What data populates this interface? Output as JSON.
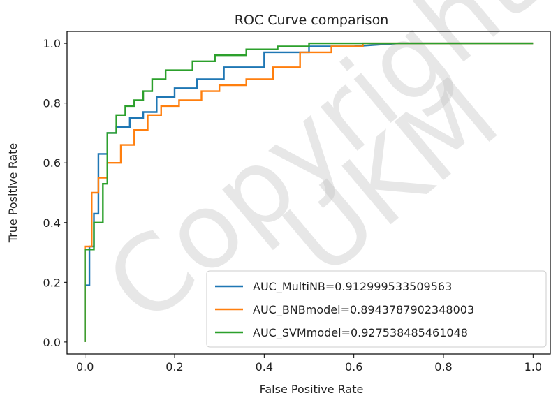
{
  "chart_data": {
    "type": "line",
    "title": "ROC Curve comparison",
    "xlabel": "False Positive Rate",
    "ylabel": "True Positive Rate",
    "xlim": [
      -0.04,
      1.04
    ],
    "ylim": [
      -0.04,
      1.04
    ],
    "xticks": [
      0.0,
      0.2,
      0.4,
      0.6,
      0.8,
      1.0
    ],
    "yticks": [
      0.0,
      0.2,
      0.4,
      0.6,
      0.8,
      1.0
    ],
    "xtick_labels": [
      "0.0",
      "0.2",
      "0.4",
      "0.6",
      "0.8",
      "1.0"
    ],
    "ytick_labels": [
      "0.0",
      "0.2",
      "0.4",
      "0.6",
      "0.8",
      "1.0"
    ],
    "grid": false,
    "legend_position": "lower-right",
    "series": [
      {
        "name": "AUC_MultiNB=0.912999533509563",
        "color": "#1f77b4",
        "x": [
          0.0,
          0.0,
          0.01,
          0.01,
          0.02,
          0.02,
          0.03,
          0.03,
          0.05,
          0.05,
          0.07,
          0.07,
          0.1,
          0.1,
          0.13,
          0.13,
          0.16,
          0.16,
          0.2,
          0.2,
          0.25,
          0.25,
          0.31,
          0.31,
          0.4,
          0.4,
          0.5,
          0.5,
          0.6,
          0.7,
          1.0
        ],
        "y": [
          0.0,
          0.19,
          0.19,
          0.32,
          0.32,
          0.43,
          0.43,
          0.63,
          0.63,
          0.7,
          0.7,
          0.72,
          0.72,
          0.75,
          0.75,
          0.77,
          0.77,
          0.82,
          0.82,
          0.85,
          0.85,
          0.88,
          0.88,
          0.92,
          0.92,
          0.97,
          0.97,
          0.99,
          0.99,
          1.0,
          1.0
        ]
      },
      {
        "name": "AUC_BNBmodel=0.8943787902348003",
        "color": "#ff7f0e",
        "x": [
          0.0,
          0.0,
          0.015,
          0.015,
          0.03,
          0.03,
          0.05,
          0.05,
          0.08,
          0.08,
          0.11,
          0.11,
          0.14,
          0.14,
          0.17,
          0.17,
          0.21,
          0.21,
          0.26,
          0.26,
          0.3,
          0.3,
          0.36,
          0.36,
          0.42,
          0.42,
          0.48,
          0.48,
          0.55,
          0.55,
          0.62,
          0.62,
          0.7,
          1.0
        ],
        "y": [
          0.0,
          0.32,
          0.32,
          0.5,
          0.5,
          0.55,
          0.55,
          0.6,
          0.6,
          0.66,
          0.66,
          0.71,
          0.71,
          0.76,
          0.76,
          0.79,
          0.79,
          0.81,
          0.81,
          0.84,
          0.84,
          0.86,
          0.86,
          0.88,
          0.88,
          0.92,
          0.92,
          0.97,
          0.97,
          0.99,
          0.99,
          1.0,
          1.0,
          1.0
        ]
      },
      {
        "name": "AUC_SVMmodel=0.927538485461048",
        "color": "#2ca02c",
        "x": [
          0.0,
          0.0,
          0.02,
          0.02,
          0.04,
          0.04,
          0.05,
          0.05,
          0.07,
          0.07,
          0.09,
          0.09,
          0.11,
          0.11,
          0.13,
          0.13,
          0.15,
          0.15,
          0.18,
          0.18,
          0.24,
          0.24,
          0.29,
          0.29,
          0.36,
          0.36,
          0.43,
          0.43,
          0.5,
          0.5,
          1.0
        ],
        "y": [
          0.0,
          0.31,
          0.31,
          0.4,
          0.4,
          0.53,
          0.53,
          0.7,
          0.7,
          0.76,
          0.76,
          0.79,
          0.79,
          0.81,
          0.81,
          0.84,
          0.84,
          0.88,
          0.88,
          0.91,
          0.91,
          0.94,
          0.94,
          0.96,
          0.96,
          0.98,
          0.98,
          0.99,
          0.99,
          1.0,
          1.0
        ]
      }
    ]
  },
  "watermark": {
    "line1": "Copyright",
    "line2": "UKM",
    "color": "#bdbdbd"
  }
}
